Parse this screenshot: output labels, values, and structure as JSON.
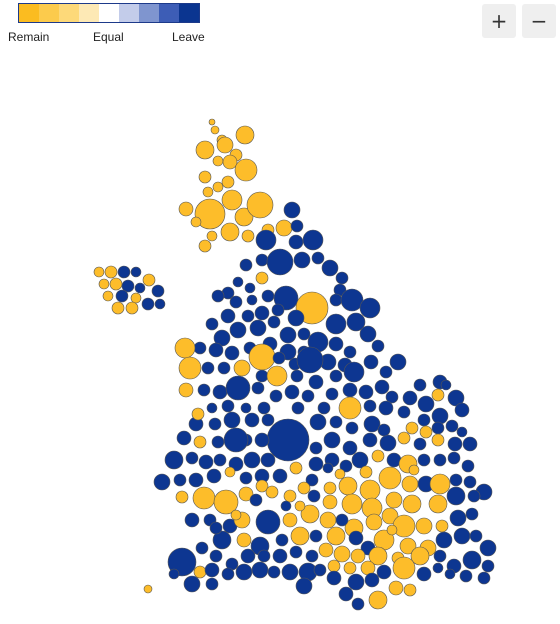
{
  "legend": {
    "left_label": "Remain",
    "middle_label": "Equal",
    "right_label": "Leave",
    "scale_colors": [
      "#fbbc20",
      "#fccb4c",
      "#fdd979",
      "#fde9b5",
      "#ffffff",
      "#c3ccea",
      "#7f95cf",
      "#3d5db6",
      "#0b3590"
    ]
  },
  "zoom": {
    "in_label": "+",
    "out_label": "−"
  },
  "colors": {
    "remain": "#fdbd2a",
    "leave": "#0d3691"
  }
}
